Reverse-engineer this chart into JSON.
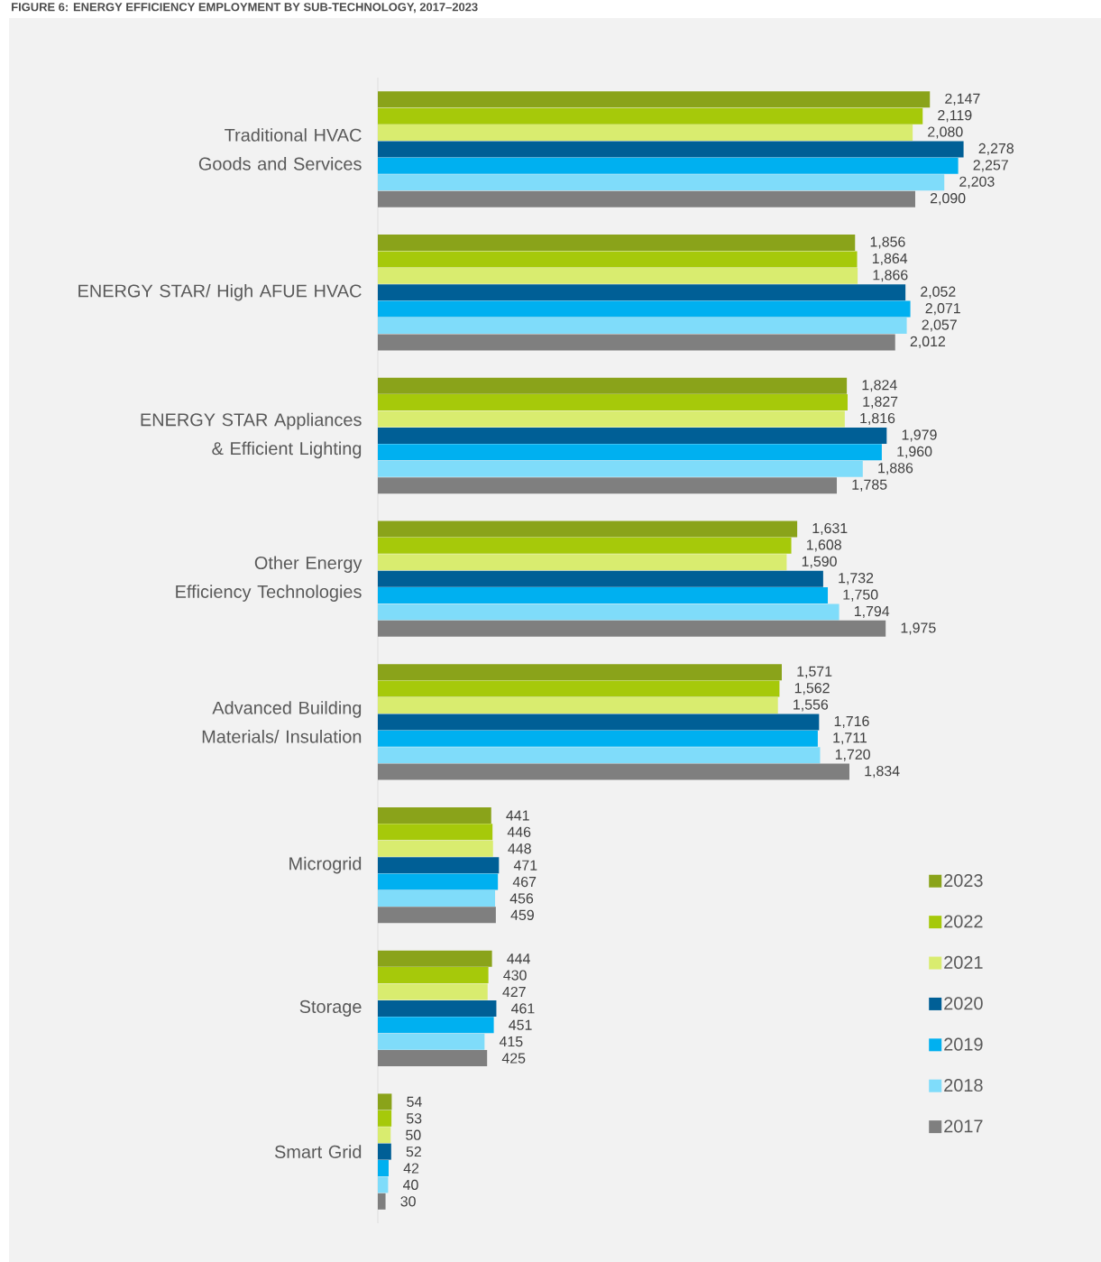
{
  "chart_data": {
    "type": "bar",
    "orientation": "horizontal",
    "title": "FIGURE 6: ENERGY EFFICIENCY EMPLOYMENT BY SUB-TECHNOLOGY, 2017–2023",
    "categories": [
      "Traditional HVAC Goods and Services",
      "ENERGY STAR/ High AFUE HVAC",
      "ENERGY STAR Appliances & Efficient Lighting",
      "Other Energy Efficiency Technologies",
      "Advanced Building Materials/ Insulation",
      "Microgrid",
      "Storage",
      "Smart Grid"
    ],
    "legend": "bottom right",
    "series": [
      {
        "name": "2023",
        "color": "#8aa31a",
        "values": [
          2147,
          1856,
          1824,
          1631,
          1571,
          441,
          444,
          54
        ],
        "value_labels": [
          "2,147",
          "1,856",
          "1,824",
          "1,631",
          "1,571",
          "441",
          "444",
          "54"
        ]
      },
      {
        "name": "2022",
        "color": "#a6c90a",
        "values": [
          2119,
          1864,
          1827,
          1608,
          1562,
          446,
          430,
          53
        ],
        "value_labels": [
          "2,119",
          "1,864",
          "1,827",
          "1,608",
          "1,562",
          "446",
          "430",
          "53"
        ]
      },
      {
        "name": "2021",
        "color": "#d9ec6f",
        "values": [
          2080,
          1866,
          1816,
          1590,
          1556,
          448,
          427,
          50
        ],
        "value_labels": [
          "2,080",
          "1,866",
          "1,816",
          "1,590",
          "1,556",
          "448",
          "427",
          "50"
        ]
      },
      {
        "name": "2020",
        "color": "#005f96",
        "values": [
          2278,
          2052,
          1979,
          1732,
          1716,
          471,
          461,
          52
        ],
        "value_labels": [
          "2,278",
          "2,052",
          "1,979",
          "1,732",
          "1,716",
          "471",
          "461",
          "52"
        ]
      },
      {
        "name": "2019",
        "color": "#00b0f0",
        "values": [
          2257,
          2071,
          1960,
          1750,
          1711,
          467,
          451,
          42
        ],
        "value_labels": [
          "2,257",
          "2,071",
          "1,960",
          "1,750",
          "1,711",
          "467",
          "451",
          "42"
        ]
      },
      {
        "name": "2018",
        "color": "#7fdcfa",
        "values": [
          2203,
          2057,
          1886,
          1794,
          1720,
          456,
          415,
          40
        ],
        "value_labels": [
          "2,203",
          "2,057",
          "1,886",
          "1,794",
          "1,720",
          "456",
          "415",
          "40"
        ]
      },
      {
        "name": "2017",
        "color": "#7f7f7f",
        "values": [
          2090,
          2012,
          1785,
          1975,
          1834,
          459,
          425,
          30
        ],
        "value_labels": [
          "2,090",
          "2,012",
          "1,785",
          "1,975",
          "1,834",
          "459",
          "425",
          "30"
        ]
      }
    ]
  }
}
